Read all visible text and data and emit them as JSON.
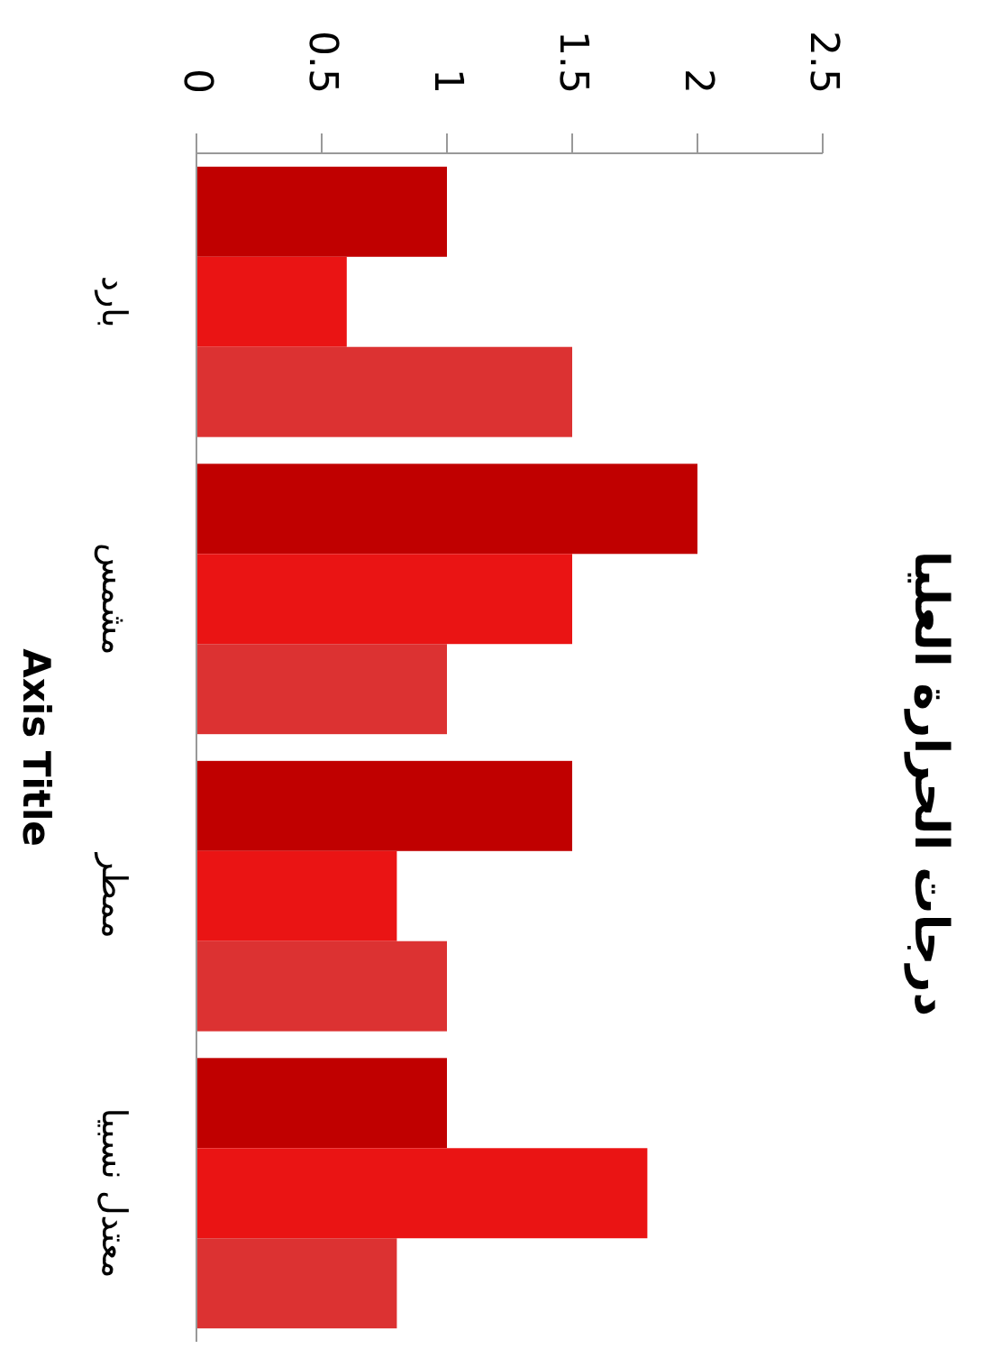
{
  "chart_data": {
    "type": "bar",
    "orientation": "horizontal",
    "title": "درجات الحرارة العليا",
    "ylabel": "Axis Title",
    "categories": [
      "بارد",
      "مشمس",
      "ممطر",
      "معتدل نسبيا"
    ],
    "series": [
      {
        "color": "#c00000",
        "values": [
          1,
          2,
          1.5,
          1
        ]
      },
      {
        "color": "#ea1414",
        "values": [
          0.6,
          1.5,
          0.8,
          1.8
        ]
      },
      {
        "color": "#dc3232",
        "values": [
          1.5,
          1,
          1,
          0.8
        ]
      }
    ],
    "xlim": [
      0,
      2.5
    ],
    "xticks": [
      0,
      0.5,
      1,
      1.5,
      2,
      2.5
    ]
  }
}
